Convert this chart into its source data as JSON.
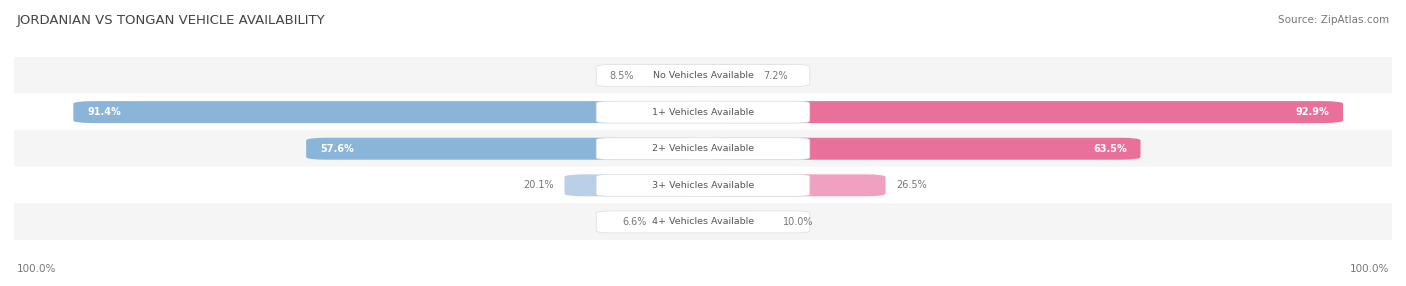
{
  "title": "JORDANIAN VS TONGAN VEHICLE AVAILABILITY",
  "source": "Source: ZipAtlas.com",
  "categories": [
    "No Vehicles Available",
    "1+ Vehicles Available",
    "2+ Vehicles Available",
    "3+ Vehicles Available",
    "4+ Vehicles Available"
  ],
  "jordanian": [
    8.5,
    91.4,
    57.6,
    20.1,
    6.6
  ],
  "tongan": [
    7.2,
    92.9,
    63.5,
    26.5,
    10.0
  ],
  "max_scale": 100.0,
  "bar_color_jordan": "#8ab4d8",
  "bar_color_tongan": "#e8709a",
  "bar_color_jordan_light": "#b8d0e8",
  "bar_color_tongan_light": "#f0a0c0",
  "bg_color": "#ffffff",
  "row_bg_even": "#f5f5f5",
  "row_bg_odd": "#ffffff",
  "center_label_bg": "#ffffff",
  "title_color": "#444444",
  "text_color": "#777777",
  "legend_jordan_color": "#8ab4d8",
  "legend_tongan_color": "#e8709a",
  "footer_text": "100.0%",
  "figwidth": 14.06,
  "figheight": 2.86
}
